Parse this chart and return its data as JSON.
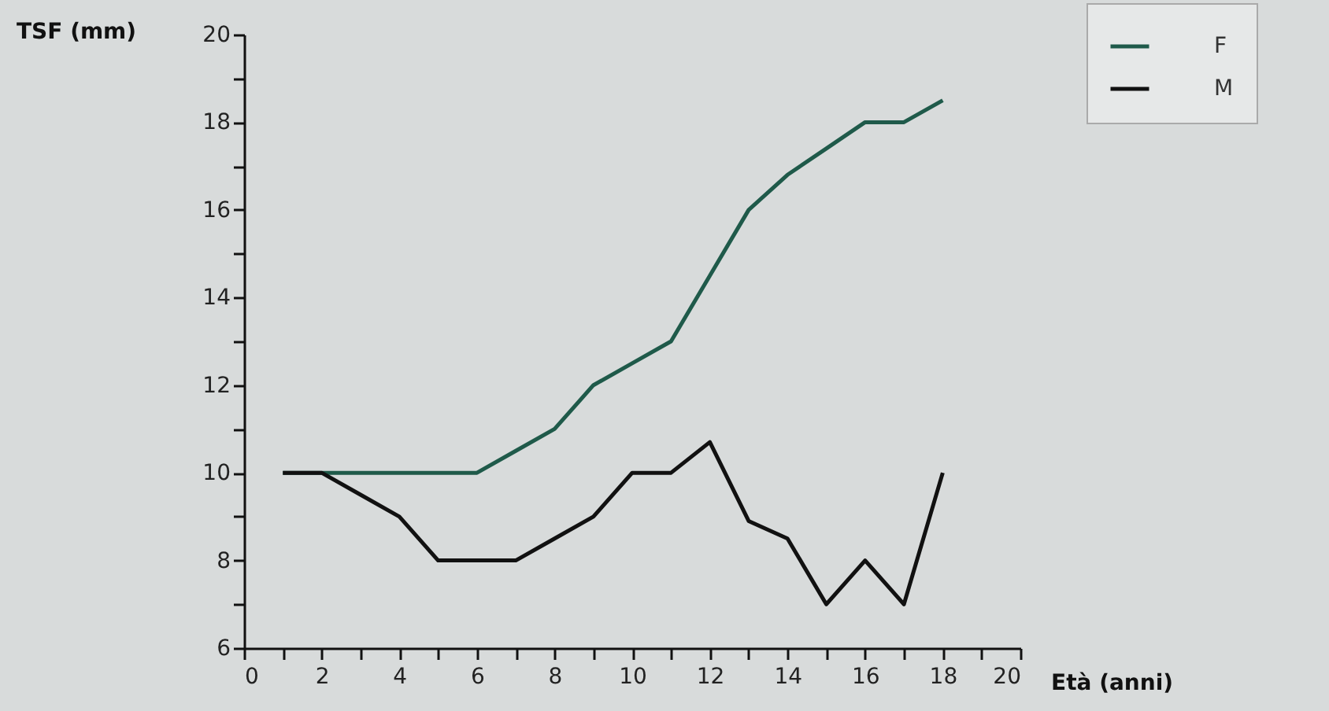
{
  "chart_data": {
    "type": "line",
    "xlabel": "Età (anni)",
    "ylabel": "TSF (mm)",
    "x": [
      1,
      2,
      3,
      4,
      5,
      6,
      7,
      8,
      9,
      10,
      11,
      12,
      13,
      14,
      15,
      16,
      17,
      18
    ],
    "series": [
      {
        "name": "F",
        "color": "#1f5a4a",
        "values": [
          10,
          10,
          10,
          10,
          10,
          10,
          10.5,
          11,
          12,
          12.5,
          13,
          14.5,
          16,
          16.8,
          17.4,
          18,
          18,
          18.5
        ]
      },
      {
        "name": "M",
        "color": "#111111",
        "values": [
          10,
          10,
          9.5,
          9,
          8,
          8,
          8,
          8.5,
          9,
          10,
          10,
          10.7,
          8.9,
          8.5,
          7,
          8,
          7,
          10
        ]
      }
    ],
    "xlim": [
      0,
      20
    ],
    "ylim": [
      6,
      20
    ],
    "xticks": [
      0,
      {
        "value": 1,
        "label": null
      },
      2,
      {
        "value": 3,
        "label": null
      },
      4,
      {
        "value": 5,
        "label": null
      },
      6,
      {
        "value": 7,
        "label": null
      },
      8,
      {
        "value": 9,
        "label": null
      },
      10,
      {
        "value": 11,
        "label": null
      },
      12,
      {
        "value": 13,
        "label": null
      },
      14,
      {
        "value": 15,
        "label": null
      },
      16,
      {
        "value": 17,
        "label": null
      },
      18,
      {
        "value": 19,
        "label": null
      },
      20
    ],
    "yticks": [
      6,
      {
        "value": 7,
        "label": null
      },
      8,
      {
        "value": 9,
        "label": null
      },
      10,
      {
        "value": 11,
        "label": null
      },
      12,
      {
        "value": 13,
        "label": null
      },
      14,
      {
        "value": 15,
        "label": null
      },
      16,
      {
        "value": 17,
        "label": null
      },
      18,
      {
        "value": 19,
        "label": null
      },
      20
    ],
    "legend": "top right",
    "marker": "none",
    "line_style": "solid"
  }
}
